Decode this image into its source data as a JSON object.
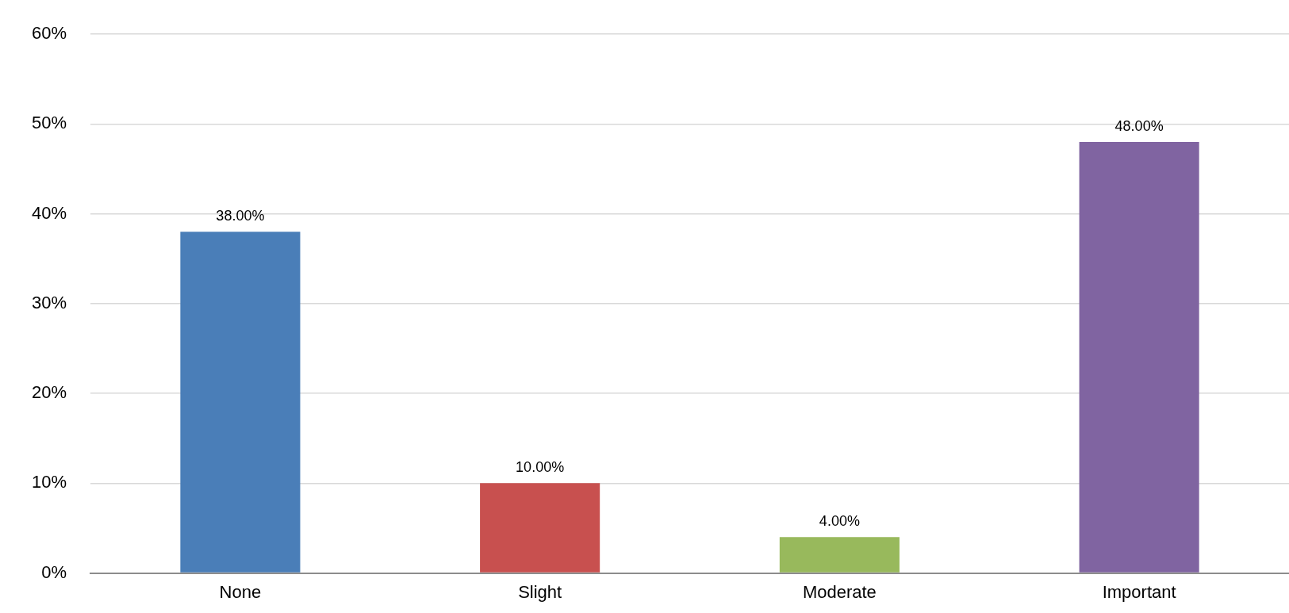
{
  "chart_data": {
    "type": "bar",
    "categories": [
      "None",
      "Slight",
      "Moderate",
      "Important"
    ],
    "values": [
      38,
      10,
      4,
      48
    ],
    "colors": [
      "#4a7eb8",
      "#c8504f",
      "#98b95c",
      "#8064a1"
    ],
    "value_labels": [
      "38.00%",
      "10.00%",
      "4.00%",
      "48.00%"
    ],
    "ylim": [
      0,
      60
    ],
    "yticks": [
      {
        "value": 0,
        "label": "0%"
      },
      {
        "value": 10,
        "label": "10%"
      },
      {
        "value": 20,
        "label": "20%"
      },
      {
        "value": 30,
        "label": "30%"
      },
      {
        "value": 40,
        "label": "40%"
      },
      {
        "value": 50,
        "label": "50%"
      },
      {
        "value": 60,
        "label": "60%"
      }
    ],
    "grid": "y"
  }
}
